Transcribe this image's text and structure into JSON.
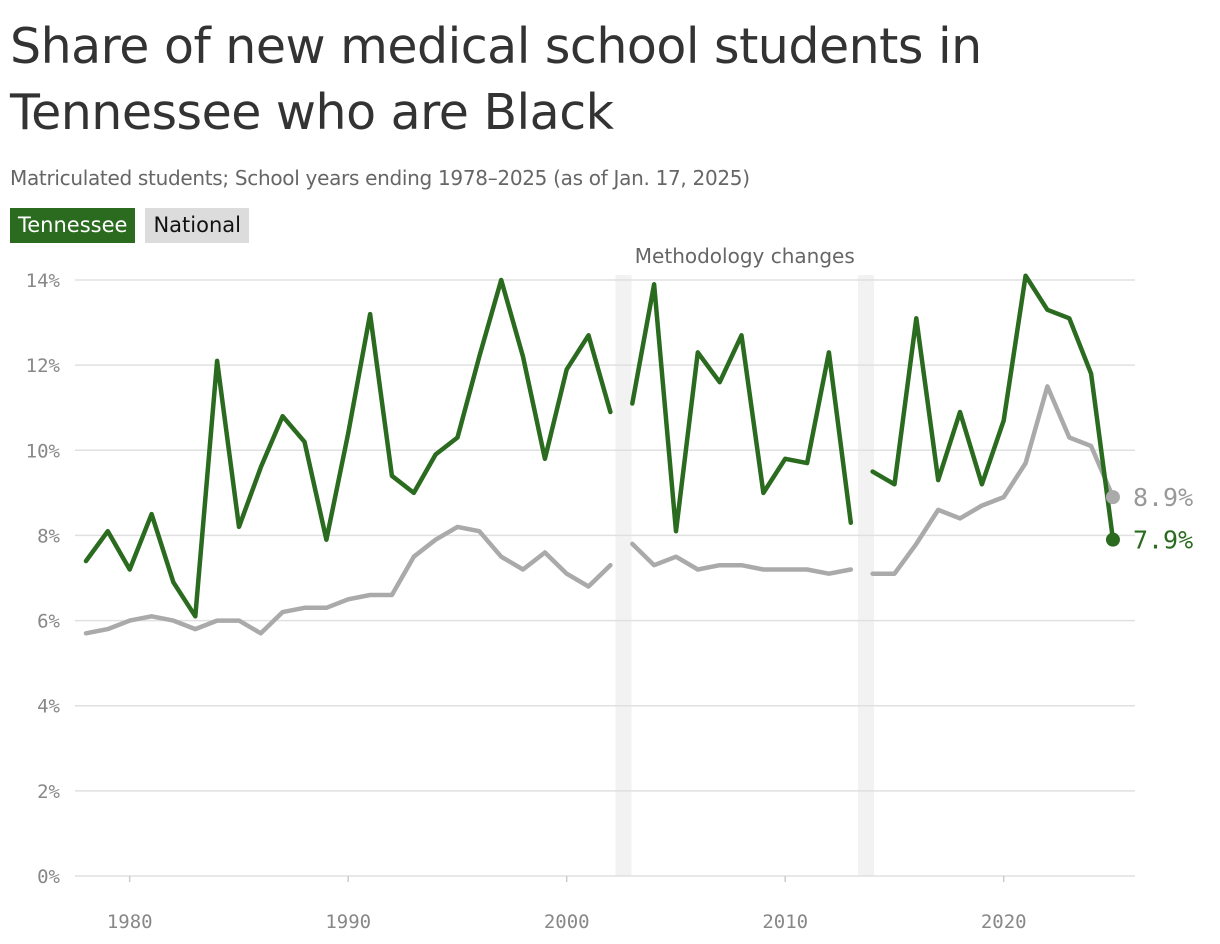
{
  "title": "Share of new medical school students in Tennessee who are Black",
  "subtitle": "Matriculated students; School years ending 1978–2025 (as of Jan. 17, 2025)",
  "legend": {
    "tennessee": "Tennessee",
    "national": "National"
  },
  "annotation": "Methodology changes",
  "colors": {
    "tennessee": "#2a6b1f",
    "national": "#aaaaaa",
    "band": "#f2f2f2",
    "grid": "#e0e0e0"
  },
  "chart_data": {
    "type": "line",
    "title": "Share of new medical school students in Tennessee who are Black",
    "xlim": [
      1976,
      2026
    ],
    "ylim": [
      0,
      14
    ],
    "y_ticks": [
      0,
      2,
      4,
      6,
      8,
      10,
      12,
      14
    ],
    "y_tick_labels": [
      "0%",
      "2%",
      "4%",
      "6%",
      "8%",
      "10%",
      "12%",
      "14%"
    ],
    "x_ticks": [
      1980,
      1990,
      2000,
      2010,
      2020
    ],
    "x_tick_labels": [
      "1980",
      "1990",
      "2000",
      "2010",
      "2020"
    ],
    "methodology_changes": [
      2002.6,
      2013.7
    ],
    "grid": true,
    "series": [
      {
        "name": "Tennessee",
        "color": "#2a6b1f",
        "segments": [
          [
            [
              1978,
              7.4
            ],
            [
              1979,
              8.1
            ],
            [
              1980,
              7.2
            ],
            [
              1981,
              8.5
            ],
            [
              1982,
              6.9
            ],
            [
              1983,
              6.1
            ],
            [
              1984,
              12.1
            ],
            [
              1985,
              8.2
            ],
            [
              1986,
              9.6
            ],
            [
              1987,
              10.8
            ],
            [
              1988,
              10.2
            ],
            [
              1989,
              7.9
            ],
            [
              1990,
              10.4
            ],
            [
              1991,
              13.2
            ],
            [
              1992,
              9.4
            ],
            [
              1993,
              9.0
            ],
            [
              1994,
              9.9
            ],
            [
              1995,
              10.3
            ],
            [
              1996,
              12.2
            ],
            [
              1997,
              14.0
            ],
            [
              1998,
              12.2
            ],
            [
              1999,
              9.8
            ],
            [
              2000,
              11.9
            ],
            [
              2001,
              12.7
            ],
            [
              2002,
              10.9
            ]
          ],
          [
            [
              2003,
              11.1
            ],
            [
              2004,
              13.9
            ],
            [
              2005,
              8.1
            ],
            [
              2006,
              12.3
            ],
            [
              2007,
              11.6
            ],
            [
              2008,
              12.7
            ],
            [
              2009,
              9.0
            ],
            [
              2010,
              9.8
            ],
            [
              2011,
              9.7
            ],
            [
              2012,
              12.3
            ],
            [
              2013,
              8.3
            ]
          ],
          [
            [
              2014,
              9.5
            ],
            [
              2015,
              9.2
            ],
            [
              2016,
              13.1
            ],
            [
              2017,
              9.3
            ],
            [
              2018,
              10.9
            ],
            [
              2019,
              9.2
            ],
            [
              2020,
              10.7
            ],
            [
              2021,
              14.1
            ],
            [
              2022,
              13.3
            ],
            [
              2023,
              13.1
            ],
            [
              2024,
              11.8
            ],
            [
              2025,
              7.9
            ]
          ]
        ],
        "end_label": "7.9%"
      },
      {
        "name": "National",
        "color": "#aaaaaa",
        "segments": [
          [
            [
              1978,
              5.7
            ],
            [
              1979,
              5.8
            ],
            [
              1980,
              6.0
            ],
            [
              1981,
              6.1
            ],
            [
              1982,
              6.0
            ],
            [
              1983,
              5.8
            ],
            [
              1984,
              6.0
            ],
            [
              1985,
              6.0
            ],
            [
              1986,
              5.7
            ],
            [
              1987,
              6.2
            ],
            [
              1988,
              6.3
            ],
            [
              1989,
              6.3
            ],
            [
              1990,
              6.5
            ],
            [
              1991,
              6.6
            ],
            [
              1992,
              6.6
            ],
            [
              1993,
              7.5
            ],
            [
              1994,
              7.9
            ],
            [
              1995,
              8.2
            ],
            [
              1996,
              8.1
            ],
            [
              1997,
              7.5
            ],
            [
              1998,
              7.2
            ],
            [
              1999,
              7.6
            ],
            [
              2000,
              7.1
            ],
            [
              2001,
              6.8
            ],
            [
              2002,
              7.3
            ]
          ],
          [
            [
              2003,
              7.8
            ],
            [
              2004,
              7.3
            ],
            [
              2005,
              7.5
            ],
            [
              2006,
              7.2
            ],
            [
              2007,
              7.3
            ],
            [
              2008,
              7.3
            ],
            [
              2009,
              7.2
            ],
            [
              2010,
              7.2
            ],
            [
              2011,
              7.2
            ],
            [
              2012,
              7.1
            ],
            [
              2013,
              7.2
            ]
          ],
          [
            [
              2014,
              7.1
            ],
            [
              2015,
              7.1
            ],
            [
              2016,
              7.8
            ],
            [
              2017,
              8.6
            ],
            [
              2018,
              8.4
            ],
            [
              2019,
              8.7
            ],
            [
              2020,
              8.9
            ],
            [
              2021,
              9.7
            ],
            [
              2022,
              11.5
            ],
            [
              2023,
              10.3
            ],
            [
              2024,
              10.1
            ],
            [
              2025,
              8.9
            ]
          ]
        ],
        "end_label": "8.9%"
      }
    ]
  }
}
